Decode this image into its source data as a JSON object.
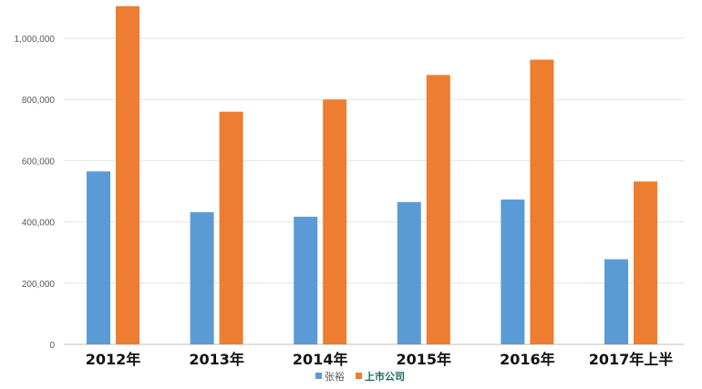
{
  "chart_data": {
    "type": "bar",
    "categories": [
      "2012年",
      "2013年",
      "2014年",
      "2015年",
      "2016年",
      "2017年上半"
    ],
    "series": [
      {
        "name": "张裕",
        "color": "#5b9bd5",
        "values": [
          565000,
          432000,
          417000,
          465000,
          473000,
          278000
        ]
      },
      {
        "name": "上市公司",
        "color": "#ed7d31",
        "values": [
          1105000,
          760000,
          800000,
          880000,
          930000,
          532000
        ]
      }
    ],
    "ylim": [
      0,
      1100000
    ],
    "yticks": [
      0,
      200000,
      400000,
      600000,
      800000,
      1000000
    ],
    "ytick_labels": [
      "0",
      "200,000",
      "400,000",
      "600,000",
      "800,000",
      "1,000,000"
    ],
    "grid": true,
    "legend_position": "bottom"
  }
}
